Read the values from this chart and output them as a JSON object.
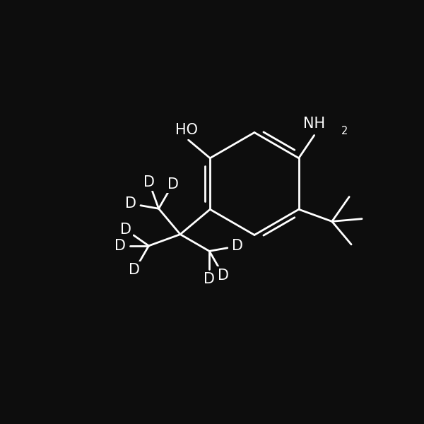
{
  "bg_color": "#0d0d0d",
  "line_color": "#ffffff",
  "text_color": "#ffffff",
  "line_width": 2.0,
  "font_size": 15,
  "figsize": [
    6.0,
    6.0
  ],
  "dpi": 100,
  "xlim": [
    0,
    12
  ],
  "ylim": [
    0,
    12
  ]
}
